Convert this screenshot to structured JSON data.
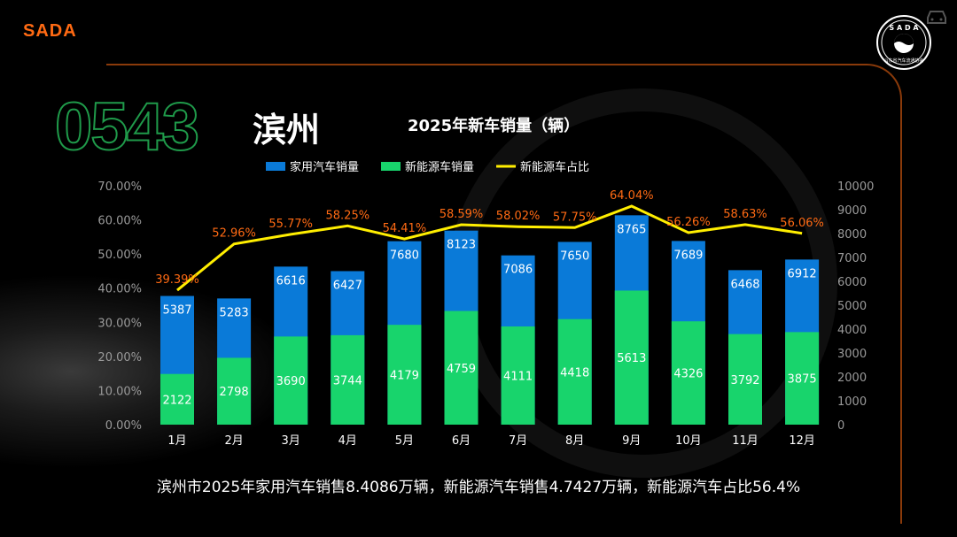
{
  "brand": "SADA",
  "area_code": "0543",
  "city": "滨州",
  "logo_text": "SADA 山东省汽车流通协会",
  "footer": "滨州市2025年家用汽车销售8.4086万辆，新能源汽车销售4.7427万辆，新能源汽车占比56.4%",
  "colors": {
    "household": "#0a7ad8",
    "nev": "#18d46c",
    "share": "#ffee00",
    "share_label": "#ff6a13",
    "accent": "#ff6a13"
  },
  "chart_data": {
    "type": "bar+line",
    "title": "2025年新车销量（辆）",
    "categories": [
      "1月",
      "2月",
      "3月",
      "4月",
      "5月",
      "6月",
      "7月",
      "8月",
      "9月",
      "10月",
      "11月",
      "12月"
    ],
    "series": [
      {
        "name": "家用汽车销量",
        "type": "bar",
        "axis": "right",
        "values": [
          5387,
          5283,
          6616,
          6427,
          7680,
          8123,
          7086,
          7650,
          8765,
          7689,
          6468,
          6912
        ]
      },
      {
        "name": "新能源车销量",
        "type": "bar",
        "axis": "right",
        "values": [
          2122,
          2798,
          3690,
          3744,
          4179,
          4759,
          4111,
          4418,
          5613,
          4326,
          3792,
          3875
        ]
      },
      {
        "name": "新能源车占比",
        "type": "line",
        "axis": "left",
        "values": [
          39.39,
          52.96,
          55.77,
          58.25,
          54.41,
          58.59,
          58.02,
          57.75,
          64.04,
          56.26,
          58.63,
          56.06
        ]
      }
    ],
    "left_axis": {
      "ylim": [
        0,
        70
      ],
      "ticks": [
        "0.00%",
        "10.00%",
        "20.00%",
        "30.00%",
        "40.00%",
        "50.00%",
        "60.00%",
        "70.00%"
      ]
    },
    "right_axis": {
      "ylim": [
        0,
        10000
      ],
      "ticks": [
        "0",
        "1000",
        "2000",
        "3000",
        "4000",
        "5000",
        "6000",
        "7000",
        "8000",
        "9000",
        "10000"
      ]
    },
    "legend": "top-left"
  }
}
